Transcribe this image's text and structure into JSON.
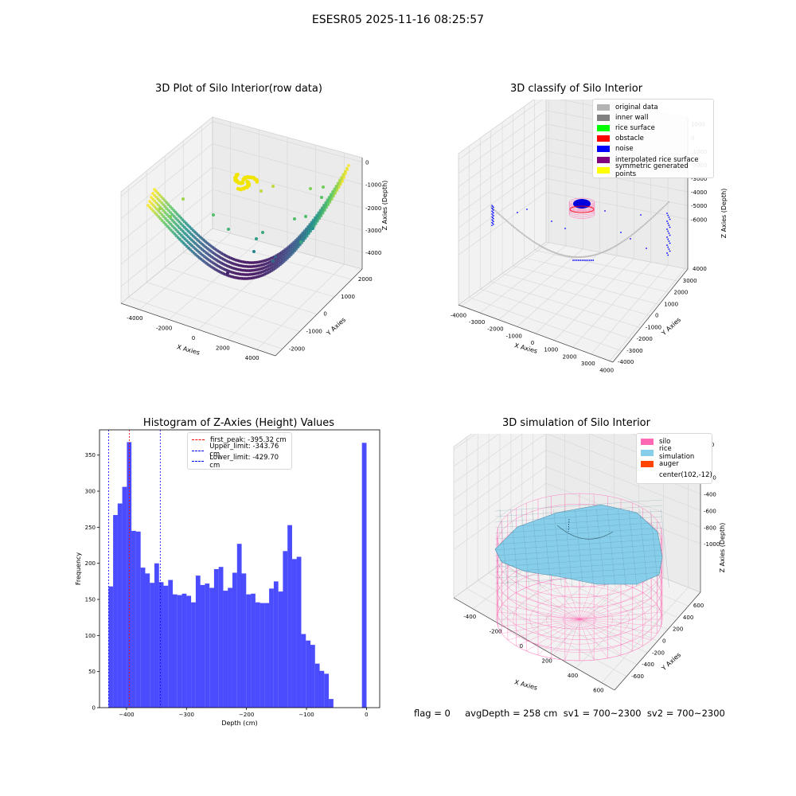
{
  "figure": {
    "suptitle": "ESESR05 2025-11-16 08:25:57",
    "footer": "flag = 0     avgDepth = 258 cm  sv1 = 700~2300  sv2 = 700~2300"
  },
  "panels": {
    "raw": {
      "title": "3D Plot of Silo Interior(row data)",
      "xlabel": "X Axies",
      "ylabel": "Y Axies",
      "zlabel": "Z Axies (Depth)",
      "xticks": [
        "-4000",
        "-2000",
        "0",
        "2000",
        "4000"
      ],
      "yticks": [
        "-2000",
        "-1000",
        "0",
        "1000",
        "2000"
      ],
      "zticks": [
        "0",
        "-1000",
        "-2000",
        "-3000",
        "-4000"
      ]
    },
    "classify": {
      "title": "3D classify of Silo Interior",
      "xlabel": "X Axies",
      "ylabel": "Y Axies",
      "zlabel": "Z Axies (Depth)",
      "xticks": [
        "-4000",
        "-3000",
        "-2000",
        "-1000",
        "0",
        "1000",
        "2000",
        "3000",
        "4000"
      ],
      "yticks": [
        "-4000",
        "-3000",
        "-2000",
        "-1000",
        "0",
        "1000",
        "2000",
        "3000",
        "4000"
      ],
      "zticks": [
        "1000",
        "0",
        "-1000",
        "-2000",
        "-3000",
        "-4000",
        "-5000",
        "-6000"
      ],
      "legend": [
        {
          "label": "original data",
          "color": "#b3b3b3"
        },
        {
          "label": "inner wall",
          "color": "#808080"
        },
        {
          "label": "rice surface",
          "color": "#00ff00"
        },
        {
          "label": "obstacle",
          "color": "#ff0000"
        },
        {
          "label": "noise",
          "color": "#0000ff"
        },
        {
          "label": "interpolated rice surface",
          "color": "#800080"
        },
        {
          "label": "symmetric generated points",
          "color": "#ffff00"
        }
      ]
    },
    "simulation": {
      "title": "3D simulation of Silo Interior",
      "xlabel": "X Axies",
      "ylabel": "Y Axies",
      "zlabel": "Z Axies (Depth)",
      "xticks": [
        "-400",
        "-200",
        "0",
        "200",
        "400",
        "600"
      ],
      "yticks": [
        "-600",
        "-400",
        "-200",
        "0",
        "200",
        "400",
        "600"
      ],
      "zticks": [
        "200",
        "0",
        "-200",
        "-400",
        "-600",
        "-800",
        "-1000"
      ],
      "legend": [
        {
          "label": "silo",
          "color": "#ff69b4"
        },
        {
          "label": "rice simulation",
          "color": "#87ceeb"
        },
        {
          "label": "auger",
          "color": "#ff4500"
        },
        {
          "label": "center(102,-12)",
          "color": ""
        }
      ]
    }
  },
  "chart_data": [
    {
      "type": "scatter",
      "title": "3D Plot of Silo Interior(row data)",
      "xlabel": "X Axies",
      "ylabel": "Y Axies",
      "zlabel": "Z Axies (Depth)",
      "xlim": [
        -4500,
        4500
      ],
      "ylim": [
        -2500,
        2500
      ],
      "zlim": [
        -4500,
        0
      ],
      "colormap": "viridis",
      "description_series": [
        {
          "name": "arc",
          "x_range": [
            -4200,
            4200
          ],
          "z_min": -4300,
          "z_max": -900
        },
        {
          "name": "cluster",
          "x": 200,
          "z": -800
        }
      ]
    },
    {
      "type": "scatter",
      "title": "3D classify of Silo Interior",
      "xlabel": "X Axies",
      "ylabel": "Y Axies",
      "zlabel": "Z Axies (Depth)",
      "xlim": [
        -4000,
        4000
      ],
      "ylim": [
        -4000,
        4000
      ],
      "zlim": [
        -6000,
        1000
      ],
      "legend_position": "top-right"
    },
    {
      "type": "bar",
      "title": "Histogram of Z-Axies (Height) Values",
      "xlabel": "Depth (cm)",
      "ylabel": "Frequency",
      "xlim": [
        -445,
        22
      ],
      "ylim": [
        0,
        385
      ],
      "xticks": [
        -400,
        -300,
        -200,
        -100,
        0
      ],
      "yticks": [
        0,
        50,
        100,
        150,
        200,
        250,
        300,
        350
      ],
      "bin_width": 7.65,
      "bin_start": -430,
      "color": "#0000ff",
      "values": [
        168,
        267,
        283,
        306,
        368,
        245,
        244,
        194,
        186,
        173,
        200,
        174,
        169,
        177,
        157,
        156,
        158,
        155,
        146,
        183,
        170,
        172,
        166,
        192,
        195,
        162,
        166,
        187,
        227,
        186,
        157,
        158,
        146,
        145,
        145,
        165,
        175,
        161,
        217,
        253,
        206,
        209,
        102,
        93,
        87,
        61,
        51,
        47,
        12,
        367
      ],
      "vlines": [
        {
          "label": "first_peak: -395.32 cm",
          "x": -395.32,
          "color": "#ff0000"
        },
        {
          "label": "Upper_limit: -343.76 cm",
          "x": -343.76,
          "color": "#0000ff"
        },
        {
          "label": "Lower_limit: -429.70 cm",
          "x": -429.7,
          "color": "#0000ff"
        }
      ],
      "legend_position": "top-center"
    },
    {
      "type": "surface",
      "title": "3D simulation of Silo Interior",
      "xlabel": "X Axies",
      "ylabel": "Y Axies",
      "zlabel": "Z Axies (Depth)",
      "xlim": [
        -500,
        700
      ],
      "ylim": [
        -700,
        700
      ],
      "zlim": [
        -1000,
        300
      ],
      "legend_position": "top-right"
    }
  ]
}
